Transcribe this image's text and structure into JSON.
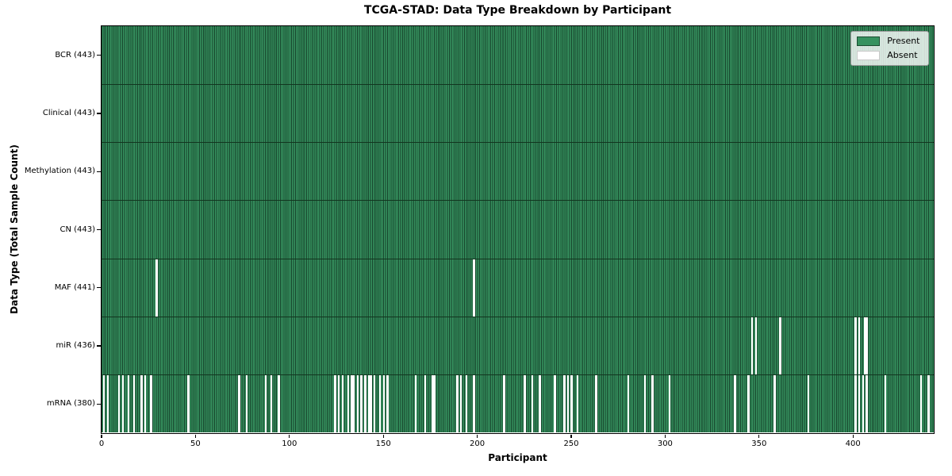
{
  "chart_data": {
    "type": "heatmap",
    "title": "TCGA-STAD: Data Type Breakdown by Participant",
    "xlabel": "Participant",
    "ylabel": "Data Type (Total Sample Count)",
    "x_axis": {
      "min": 0,
      "max": 443,
      "ticks": [
        0,
        50,
        100,
        150,
        200,
        250,
        300,
        350,
        400
      ]
    },
    "n_participants": 443,
    "rows": [
      {
        "data_type": "BCR",
        "label": "BCR (443)",
        "total": 443,
        "absent_participants": []
      },
      {
        "data_type": "Clinical",
        "label": "Clinical (443)",
        "total": 443,
        "absent_participants": []
      },
      {
        "data_type": "Methylation",
        "label": "Methylation (443)",
        "total": 443,
        "absent_participants": []
      },
      {
        "data_type": "CN",
        "label": "CN (443)",
        "total": 443,
        "absent_participants": []
      },
      {
        "data_type": "MAF",
        "label": "MAF (441)",
        "total": 441,
        "absent_participants": [
          29,
          198
        ]
      },
      {
        "data_type": "miR",
        "label": "miR (436)",
        "total": 436,
        "absent_participants": [
          346,
          348,
          361,
          401,
          403,
          406,
          407
        ]
      },
      {
        "data_type": "mRNA",
        "label": "mRNA (380)",
        "total": 380,
        "absent_participants": [
          1,
          3,
          9,
          11,
          14,
          17,
          21,
          23,
          26,
          46,
          73,
          77,
          87,
          90,
          94,
          124,
          126,
          128,
          131,
          133,
          134,
          136,
          138,
          140,
          142,
          143,
          145,
          148,
          150,
          152,
          167,
          172,
          176,
          177,
          189,
          191,
          194,
          198,
          214,
          225,
          229,
          233,
          241,
          246,
          248,
          250,
          253,
          263,
          280,
          289,
          293,
          302,
          337,
          344,
          358,
          376,
          401,
          403,
          405,
          407,
          417,
          436,
          440
        ]
      }
    ],
    "legend": {
      "position": "upper right",
      "entries": [
        {
          "label": "Present",
          "color": "#36925f",
          "edge": "#1b4d31"
        },
        {
          "label": "Absent",
          "color": "#ffffff",
          "edge": "#c8c8c8"
        }
      ]
    },
    "colors": {
      "present": "#36925f",
      "absent": "#ffffff",
      "bar_edge": "#16432b",
      "row_divider": "#12351f",
      "spine": "#000000"
    }
  }
}
